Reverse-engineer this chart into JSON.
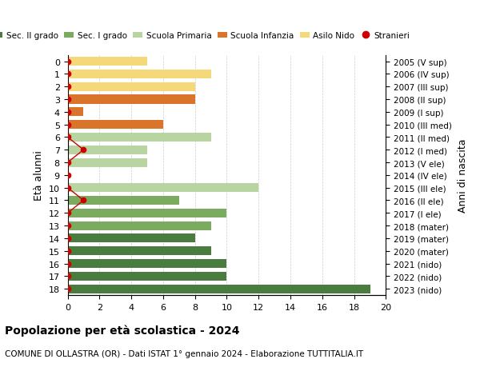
{
  "ages": [
    18,
    17,
    16,
    15,
    14,
    13,
    12,
    11,
    10,
    9,
    8,
    7,
    6,
    5,
    4,
    3,
    2,
    1,
    0
  ],
  "years": [
    "2005 (V sup)",
    "2006 (IV sup)",
    "2007 (III sup)",
    "2008 (II sup)",
    "2009 (I sup)",
    "2010 (III med)",
    "2011 (II med)",
    "2012 (I med)",
    "2013 (V ele)",
    "2014 (IV ele)",
    "2015 (III ele)",
    "2016 (II ele)",
    "2017 (I ele)",
    "2018 (mater)",
    "2019 (mater)",
    "2020 (mater)",
    "2021 (nido)",
    "2022 (nido)",
    "2023 (nido)"
  ],
  "bar_values": [
    19,
    10,
    10,
    9,
    8,
    9,
    10,
    7,
    12,
    0,
    5,
    5,
    9,
    6,
    1,
    8,
    8,
    9,
    5
  ],
  "bar_colors": [
    "#4a7c3f",
    "#4a7c3f",
    "#4a7c3f",
    "#4a7c3f",
    "#4a7c3f",
    "#7aab5e",
    "#7aab5e",
    "#7aab5e",
    "#b8d4a0",
    "#b8d4a0",
    "#b8d4a0",
    "#b8d4a0",
    "#b8d4a0",
    "#d9742a",
    "#d9742a",
    "#d9742a",
    "#f5d87a",
    "#f5d87a",
    "#f5d87a"
  ],
  "stranieri_x": [
    0,
    0,
    0,
    0,
    0,
    0,
    0,
    1,
    0,
    0,
    0,
    1,
    0,
    0,
    0,
    0,
    0,
    0,
    0
  ],
  "stranieri_color": "#cc0000",
  "legend_labels": [
    "Sec. II grado",
    "Sec. I grado",
    "Scuola Primaria",
    "Scuola Infanzia",
    "Asilo Nido",
    "Stranieri"
  ],
  "legend_colors": [
    "#4a7c3f",
    "#7aab5e",
    "#b8d4a0",
    "#d9742a",
    "#f5d87a",
    "#cc0000"
  ],
  "ylabel_left": "Età alunni",
  "ylabel_right": "Anni di nascita",
  "title": "Popolazione per età scolastica - 2024",
  "subtitle": "COMUNE DI OLLASTRA (OR) - Dati ISTAT 1° gennaio 2024 - Elaborazione TUTTITALIA.IT",
  "xlim": [
    0,
    20
  ],
  "xticks": [
    0,
    2,
    4,
    6,
    8,
    10,
    12,
    14,
    16,
    18,
    20
  ],
  "background_color": "#ffffff",
  "grid_color": "#cccccc"
}
